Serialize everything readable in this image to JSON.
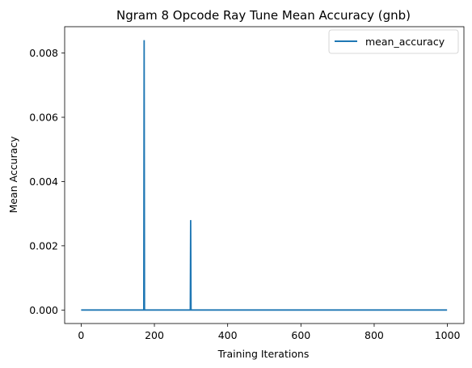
{
  "chart_data": {
    "type": "line",
    "title": "Ngram 8 Opcode Ray Tune Mean Accuracy (gnb)",
    "xlabel": "Training Iterations",
    "ylabel": "Mean Accuracy",
    "xlim": [
      -45,
      1045
    ],
    "ylim": [
      -0.00042,
      0.00882
    ],
    "xticks": [
      0,
      200,
      400,
      600,
      800,
      1000
    ],
    "xtick_labels": [
      "0",
      "200",
      "400",
      "600",
      "800",
      "1000"
    ],
    "yticks": [
      0.0,
      0.002,
      0.004,
      0.006,
      0.008
    ],
    "ytick_labels": [
      "0.000",
      "0.002",
      "0.004",
      "0.006",
      "0.008"
    ],
    "grid": false,
    "legend": {
      "position": "top-right",
      "entries": [
        "mean_accuracy"
      ]
    },
    "series": [
      {
        "name": "mean_accuracy",
        "color": "#1f77b4",
        "x": [
          0,
          171,
          172,
          173,
          298,
          299,
          300,
          999
        ],
        "y": [
          0,
          0,
          0.0084,
          0,
          0,
          0.0028,
          0,
          0
        ]
      }
    ]
  }
}
